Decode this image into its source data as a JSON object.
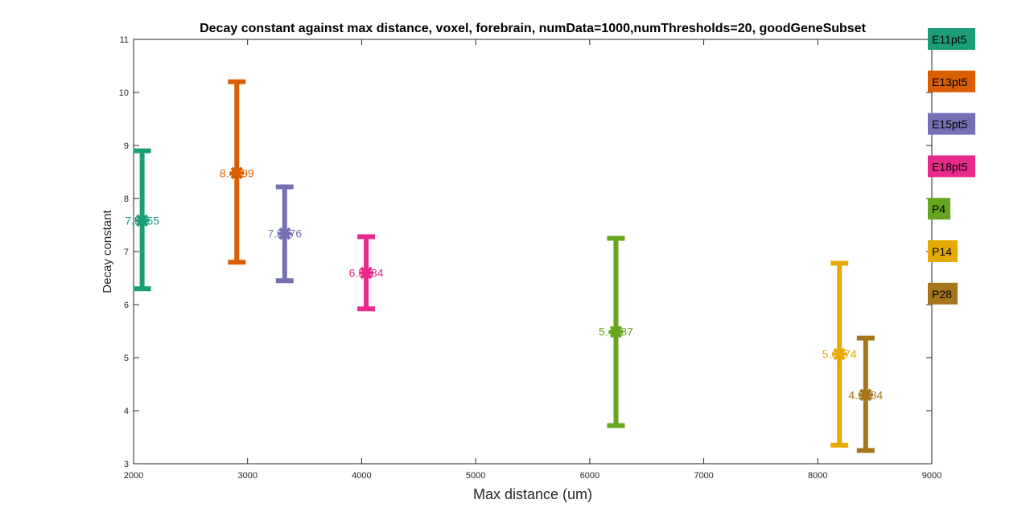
{
  "chart_data": {
    "type": "scatter",
    "title": "Decay constant against max distance, voxel, forebrain, numData=1000,numThresholds=20, goodGeneSubset",
    "xlabel": "Max distance (um)",
    "ylabel": "Decay constant",
    "xlim": [
      2000,
      9000
    ],
    "ylim": [
      3,
      11
    ],
    "xticks": [
      "2000",
      "3000",
      "4000",
      "5000",
      "6000",
      "7000",
      "8000",
      "9000"
    ],
    "yticks": [
      "3",
      "4",
      "5",
      "6",
      "7",
      "8",
      "9",
      "10",
      "11"
    ],
    "grid": false,
    "legend_position": "right",
    "series": [
      {
        "name": "E11pt5",
        "color": "#1b9e77",
        "x": 2075,
        "y": 7.5855,
        "low": 6.3,
        "high": 8.9,
        "label": "7.5855"
      },
      {
        "name": "E13pt5",
        "color": "#d95f02",
        "x": 2905,
        "y": 8.4799,
        "low": 6.8,
        "high": 10.2,
        "label": "8.4799"
      },
      {
        "name": "E15pt5",
        "color": "#7570b3",
        "x": 3325,
        "y": 7.3376,
        "low": 6.45,
        "high": 8.22,
        "label": "7.3376"
      },
      {
        "name": "E18pt5",
        "color": "#e7298a",
        "x": 4040,
        "y": 6.5984,
        "low": 5.92,
        "high": 7.28,
        "label": "6.5984"
      },
      {
        "name": "P4",
        "color": "#66a61e",
        "x": 6230,
        "y": 5.4887,
        "low": 3.72,
        "high": 7.25,
        "label": "5.4887"
      },
      {
        "name": "P14",
        "color": "#e6ab02",
        "x": 8190,
        "y": 5.0674,
        "low": 3.35,
        "high": 6.78,
        "label": "5.0674"
      },
      {
        "name": "P28",
        "color": "#a6761d",
        "x": 8420,
        "y": 4.2984,
        "low": 3.25,
        "high": 5.37,
        "label": "4.2984"
      }
    ]
  }
}
